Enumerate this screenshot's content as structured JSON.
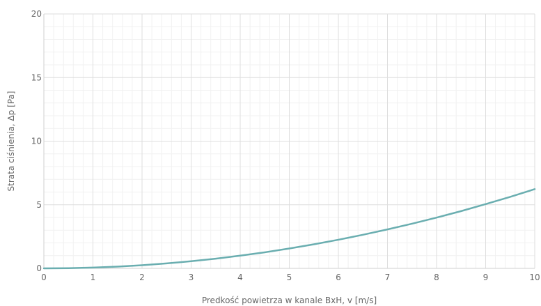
{
  "chart_data": {
    "type": "line",
    "title": "",
    "xlabel": "Predkość powietrza w kanale BxH, v [m/s]",
    "ylabel": "Strata ciśnienia, Δp [Pa]",
    "xlim": [
      0,
      10
    ],
    "ylim": [
      0,
      20
    ],
    "x_ticks": [
      "0",
      "1",
      "2",
      "3",
      "4",
      "5",
      "6",
      "7",
      "8",
      "9",
      "10"
    ],
    "y_ticks": [
      "0",
      "5",
      "10",
      "15",
      "20"
    ],
    "grid": true,
    "legend": "none",
    "series": [
      {
        "color": "#6aaeb0",
        "x": [
          0,
          0.5,
          1,
          1.5,
          2,
          2.5,
          3,
          3.5,
          4,
          4.5,
          5,
          5.5,
          6,
          6.5,
          7,
          7.5,
          8,
          8.5,
          9,
          9.5,
          10
        ],
        "values": [
          0,
          0.016,
          0.062,
          0.14,
          0.25,
          0.39,
          0.56,
          0.76,
          1.0,
          1.26,
          1.56,
          1.89,
          2.25,
          2.64,
          3.06,
          3.51,
          3.99,
          4.5,
          5.05,
          5.62,
          6.23
        ]
      }
    ]
  }
}
